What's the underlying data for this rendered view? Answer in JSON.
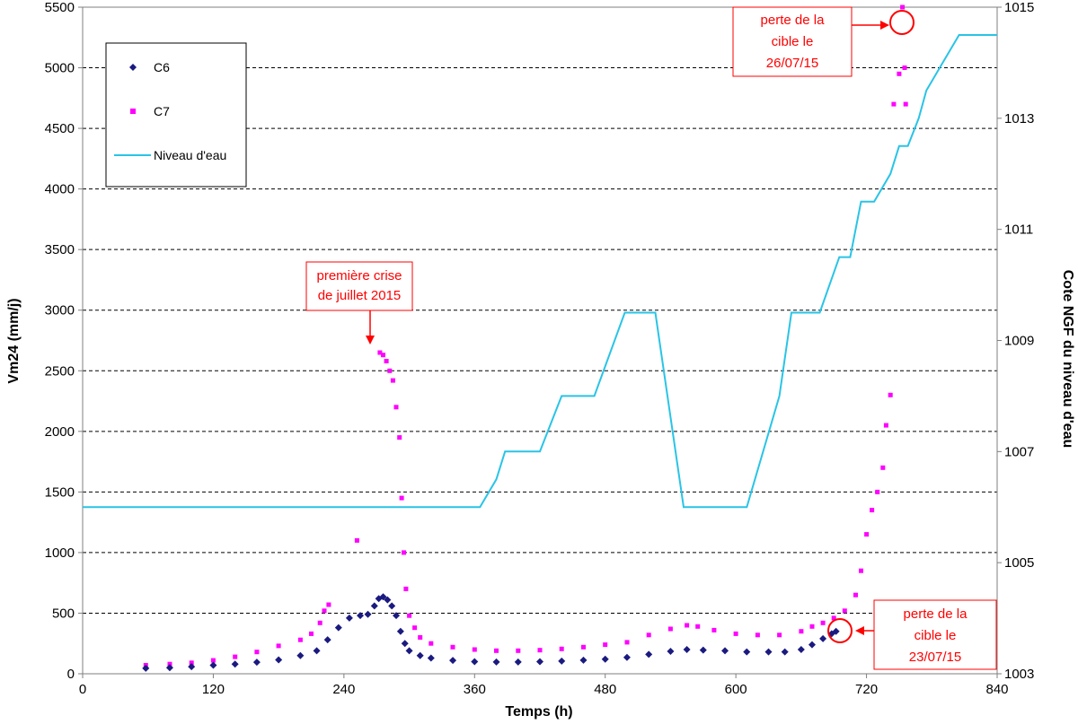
{
  "chart_data": {
    "type": "scatter",
    "title": "",
    "xlabel": "Temps (h)",
    "ylabel": "Vm24 (mm/j)",
    "y2label": "Cote NGF du niveau d'eau",
    "xlim": [
      0,
      840
    ],
    "ylim": [
      0,
      5500
    ],
    "y2lim": [
      1003,
      1015
    ],
    "xticks": [
      "0",
      "120",
      "240",
      "360",
      "480",
      "600",
      "720",
      "840"
    ],
    "yticks": [
      "0",
      "500",
      "1000",
      "1500",
      "2000",
      "2500",
      "3000",
      "3500",
      "4000",
      "4500",
      "5000",
      "5500"
    ],
    "y2ticks": [
      "1003",
      "1005",
      "1007",
      "1009",
      "1011",
      "1013",
      "1015"
    ],
    "grid": "horizontal dashed",
    "legend_position": "top-left",
    "colors": {
      "c6": "#1a1a80",
      "c7": "#ff00ff",
      "niveau": "#29c4e6",
      "annotation": "#ff0000"
    },
    "series": [
      {
        "name": "C6",
        "marker": "diamond",
        "x": [
          58,
          80,
          100,
          120,
          140,
          160,
          180,
          200,
          215,
          225,
          235,
          245,
          255,
          262,
          268,
          272,
          276,
          280,
          284,
          288,
          292,
          296,
          300,
          310,
          320,
          340,
          360,
          380,
          400,
          420,
          440,
          460,
          480,
          500,
          520,
          540,
          555,
          570,
          590,
          610,
          630,
          645,
          660,
          670,
          680,
          688,
          692
        ],
        "y": [
          45,
          50,
          58,
          70,
          80,
          95,
          115,
          150,
          190,
          280,
          380,
          460,
          480,
          490,
          560,
          620,
          635,
          610,
          560,
          480,
          350,
          250,
          190,
          150,
          130,
          110,
          100,
          97,
          97,
          100,
          105,
          112,
          120,
          135,
          160,
          185,
          200,
          195,
          190,
          180,
          180,
          180,
          200,
          240,
          290,
          330,
          350
        ]
      },
      {
        "name": "C7",
        "marker": "square",
        "x": [
          58,
          80,
          100,
          120,
          140,
          160,
          180,
          200,
          210,
          218,
          222,
          226,
          252,
          273,
          276,
          279,
          282,
          285,
          288,
          291,
          293,
          295,
          297,
          300,
          305,
          310,
          320,
          340,
          360,
          380,
          400,
          420,
          440,
          460,
          480,
          500,
          520,
          540,
          555,
          565,
          580,
          600,
          620,
          640,
          660,
          670,
          680,
          690,
          700,
          710,
          715,
          720,
          725,
          730,
          735,
          738,
          742,
          745,
          750,
          753,
          755,
          756
        ],
        "y": [
          70,
          80,
          90,
          110,
          140,
          180,
          230,
          280,
          330,
          420,
          520,
          570,
          1100,
          2650,
          2630,
          2580,
          2500,
          2420,
          2200,
          1950,
          1450,
          1000,
          700,
          480,
          380,
          300,
          250,
          220,
          200,
          190,
          190,
          195,
          205,
          220,
          240,
          260,
          320,
          370,
          400,
          390,
          360,
          330,
          320,
          320,
          350,
          390,
          420,
          460,
          520,
          650,
          850,
          1150,
          1350,
          1500,
          1700,
          2050,
          2300,
          4700,
          4950,
          5500,
          5000,
          4700
        ]
      },
      {
        "name": "Niveau d'eau",
        "axis": "right",
        "line": true,
        "x": [
          0,
          365,
          380,
          388,
          420,
          440,
          470,
          498,
          526,
          552,
          610,
          640,
          651,
          677,
          695,
          705,
          715,
          727,
          742,
          750,
          758,
          768,
          775,
          790,
          805,
          840
        ],
        "y": [
          1006,
          1006,
          1006.5,
          1007,
          1007,
          1008,
          1008,
          1009.5,
          1009.5,
          1006,
          1006,
          1008,
          1009.5,
          1009.5,
          1010.5,
          1010.5,
          1011.5,
          1011.5,
          1012,
          1012.5,
          1012.5,
          1013,
          1013.5,
          1014,
          1014.5,
          1014.5
        ]
      }
    ],
    "annotations": [
      {
        "text_lines": [
          "première crise",
          "de juillet 2015"
        ],
        "target_x": 265,
        "target_y": 2650
      },
      {
        "text_lines": [
          "perte de la",
          "cible le",
          "26/07/15"
        ],
        "target_x": 750,
        "target_y": 5450
      },
      {
        "text_lines": [
          "perte de la",
          "cible le",
          "23/07/15"
        ],
        "target_x": 692,
        "target_y": 350
      }
    ]
  }
}
